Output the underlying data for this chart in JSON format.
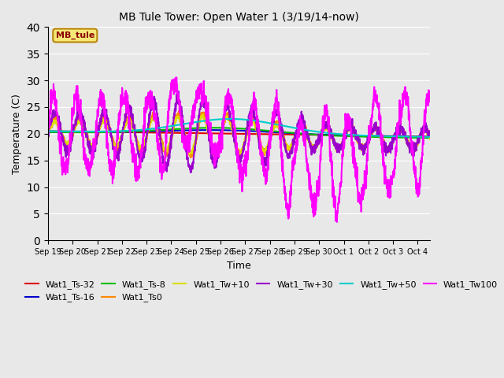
{
  "title": "MB Tule Tower: Open Water 1 (3/19/14-now)",
  "xlabel": "Time",
  "ylabel": "Temperature (C)",
  "ylim": [
    0,
    40
  ],
  "yticks": [
    0,
    5,
    10,
    15,
    20,
    25,
    30,
    35,
    40
  ],
  "n_days": 15.5,
  "x_tick_labels": [
    "Sep 19",
    "Sep 20",
    "Sep 21",
    "Sep 22",
    "Sep 23",
    "Sep 24",
    "Sep 25",
    "Sep 26",
    "Sep 27",
    "Sep 28",
    "Sep 29",
    "Sep 30",
    "Oct 1",
    "Oct 2",
    "Oct 3",
    "Oct 4"
  ],
  "x_tick_positions": [
    0,
    1,
    2,
    3,
    4,
    5,
    6,
    7,
    8,
    9,
    10,
    11,
    12,
    13,
    14,
    15
  ]
}
